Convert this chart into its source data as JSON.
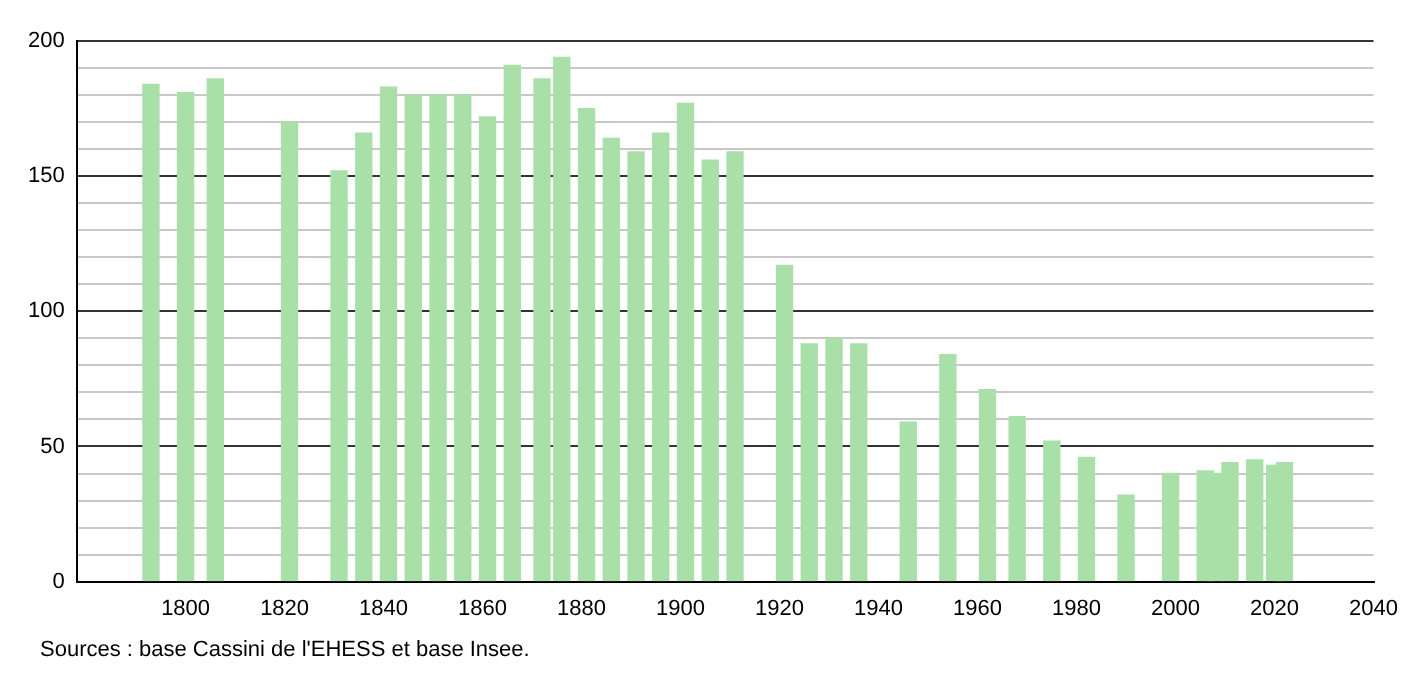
{
  "chart_data": {
    "type": "bar",
    "x": [
      1793,
      1800,
      1806,
      1821,
      1831,
      1836,
      1841,
      1846,
      1851,
      1856,
      1861,
      1866,
      1872,
      1876,
      1881,
      1886,
      1891,
      1896,
      1901,
      1906,
      1911,
      1921,
      1926,
      1931,
      1936,
      1946,
      1954,
      1962,
      1968,
      1975,
      1982,
      1990,
      1999,
      2006,
      2008,
      2011,
      2016,
      2020,
      2022
    ],
    "values": [
      184,
      181,
      186,
      170,
      152,
      166,
      183,
      180,
      180,
      180,
      172,
      191,
      186,
      194,
      175,
      164,
      159,
      166,
      177,
      156,
      159,
      117,
      88,
      90,
      88,
      59,
      84,
      71,
      61,
      52,
      46,
      32,
      40,
      41,
      40,
      44,
      45,
      43,
      44
    ],
    "color": "#a8e0a8",
    "xlim": [
      1778,
      2040
    ],
    "xticks": [
      1800,
      1820,
      1840,
      1860,
      1880,
      1900,
      1920,
      1940,
      1960,
      1980,
      2000,
      2020,
      2040
    ],
    "ylim": [
      0,
      200
    ],
    "yticks": [
      0,
      {
        "value": 10,
        "label": null
      },
      {
        "value": 20,
        "label": null
      },
      {
        "value": 30,
        "label": null
      },
      {
        "value": 40,
        "label": null
      },
      50,
      {
        "value": 60,
        "label": null
      },
      {
        "value": 70,
        "label": null
      },
      {
        "value": 80,
        "label": null
      },
      {
        "value": 90,
        "label": null
      },
      100,
      {
        "value": 110,
        "label": null
      },
      {
        "value": 120,
        "label": null
      },
      {
        "value": 130,
        "label": null
      },
      {
        "value": 140,
        "label": null
      },
      150,
      {
        "value": 160,
        "label": null
      },
      {
        "value": 170,
        "label": null
      },
      {
        "value": 180,
        "label": null
      },
      {
        "value": 190,
        "label": null
      },
      200
    ],
    "grid": "y",
    "legend": false,
    "annotations": [
      "Sources : base Cassini de l'EHESS et base Insee."
    ]
  }
}
